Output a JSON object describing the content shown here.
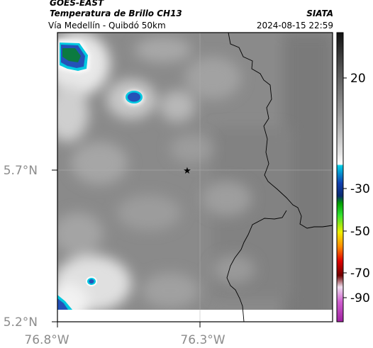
{
  "header": {
    "source": "GOES-EAST",
    "product": "Temperatura de Brillo CH13",
    "organization": "SIATA",
    "region": "Vía Medellín - Quibdó 50km",
    "timestamp": "2024-08-15 22:59"
  },
  "axes": {
    "lat_ticks": [
      "5.7°N",
      "5.2°N"
    ],
    "lon_ticks": [
      "76.8°W",
      "76.3°W"
    ]
  },
  "colorbar": {
    "ticks": [
      "20",
      "-30",
      "-50",
      "-70",
      "-90"
    ]
  },
  "marker": {
    "symbol": "★",
    "name": "location-marker"
  },
  "colors": {
    "background_gray": "#8a8a8a",
    "cold_cloud": "#2a60c8",
    "border_line": "#000000"
  }
}
